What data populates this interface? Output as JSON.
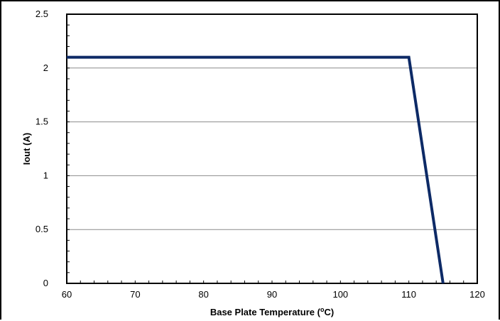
{
  "chart_data": {
    "type": "line",
    "title": "",
    "xlabel": "Base Plate Temperature (",
    "xlabel_sup": "o",
    "xlabel_end": "C)",
    "ylabel": "Iout (A)",
    "xlim": [
      60,
      120
    ],
    "ylim": [
      0,
      2.5
    ],
    "x_ticks": [
      "60",
      "70",
      "80",
      "90",
      "100",
      "110",
      "120"
    ],
    "y_ticks": [
      "0",
      "0.5",
      "1",
      "1.5",
      "2",
      "2.5"
    ],
    "grid": "horizontal",
    "legend": "none",
    "series": [
      {
        "x": [
          60,
          110,
          115
        ],
        "y": [
          2.1,
          2.1,
          0
        ],
        "color": "#0d2a66"
      }
    ]
  }
}
